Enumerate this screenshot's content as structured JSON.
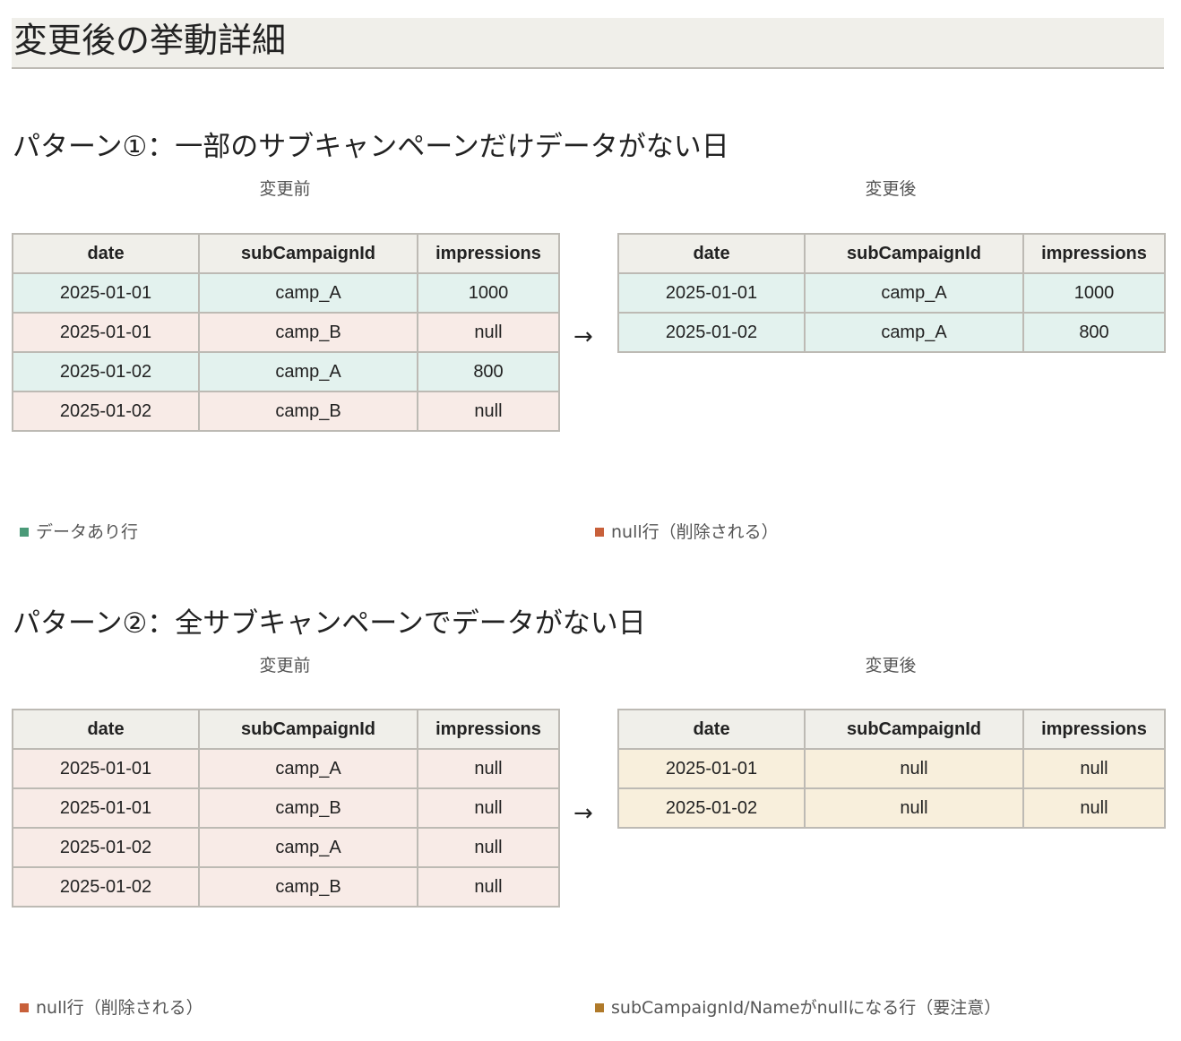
{
  "title": "変更後の挙動詳細",
  "headers": [
    "date",
    "subCampaignId",
    "impressions"
  ],
  "colors": {
    "data_row": "#4a9a78",
    "null_row": "#c8603a",
    "warn_row": "#b07a2a"
  },
  "pattern1": {
    "heading": "パターン①：一部のサブキャンペーンだけデータがない日",
    "before_caption": "変更前",
    "after_caption": "変更後",
    "arrow": "→",
    "before_rows": [
      [
        "2025-01-01",
        "camp_A",
        "1000"
      ],
      [
        "2025-01-01",
        "camp_B",
        "null"
      ],
      [
        "2025-01-02",
        "camp_A",
        "800"
      ],
      [
        "2025-01-02",
        "camp_B",
        "null"
      ]
    ],
    "after_rows": [
      [
        "2025-01-01",
        "camp_A",
        "1000"
      ],
      [
        "2025-01-02",
        "camp_A",
        "800"
      ]
    ],
    "legend_left": "データあり行",
    "legend_right": "null行（削除される）"
  },
  "pattern2": {
    "heading": "パターン②：全サブキャンペーンでデータがない日",
    "before_caption": "変更前",
    "after_caption": "変更後",
    "arrow": "→",
    "before_rows": [
      [
        "2025-01-01",
        "camp_A",
        "null"
      ],
      [
        "2025-01-01",
        "camp_B",
        "null"
      ],
      [
        "2025-01-02",
        "camp_A",
        "null"
      ],
      [
        "2025-01-02",
        "camp_B",
        "null"
      ]
    ],
    "after_rows": [
      [
        "2025-01-01",
        "null",
        "null"
      ],
      [
        "2025-01-02",
        "null",
        "null"
      ]
    ],
    "legend_left": "null行（削除される）",
    "legend_right": "subCampaignId/Nameがnullになる行（要注意）"
  }
}
